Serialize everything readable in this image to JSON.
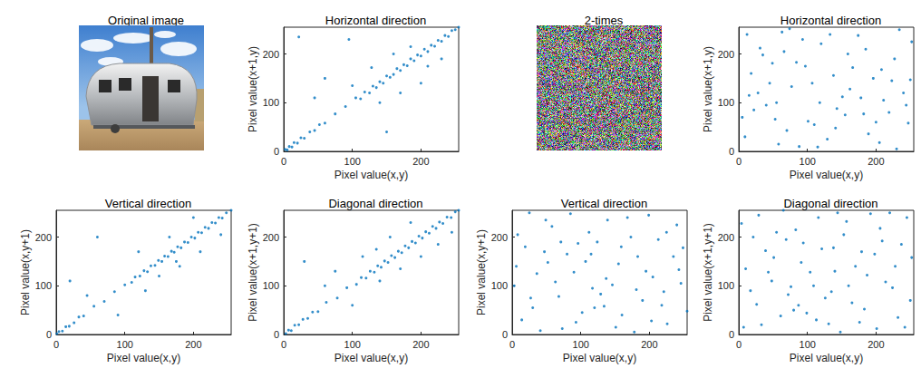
{
  "images": [
    {
      "title": "Original image"
    },
    {
      "title": "2-times"
    }
  ],
  "chart_data": [
    {
      "type": "scatter",
      "title": "Horizontal direction",
      "x_label": "Pixel value(x,y)",
      "y_label": "Pixel value(x+1,y)",
      "xlim": [
        0,
        255
      ],
      "ylim": [
        0,
        255
      ],
      "xticks": [
        0,
        100,
        200
      ],
      "yticks": [
        0,
        100,
        200
      ],
      "grid": false,
      "color": "#0072bd",
      "marker": "circle",
      "x": [
        2,
        5,
        8,
        12,
        15,
        20,
        25,
        30,
        38,
        45,
        52,
        60,
        75,
        90,
        105,
        112,
        118,
        125,
        130,
        135,
        140,
        145,
        150,
        155,
        160,
        165,
        170,
        175,
        180,
        185,
        190,
        195,
        200,
        205,
        210,
        215,
        220,
        225,
        230,
        235,
        240,
        245,
        250,
        255,
        128,
        170,
        60,
        150,
        200,
        95,
        22,
        185,
        140,
        210,
        100,
        230,
        45,
        160
      ],
      "values": [
        4,
        3,
        10,
        9,
        18,
        17,
        28,
        27,
        40,
        43,
        55,
        58,
        77,
        92,
        110,
        108,
        122,
        120,
        134,
        131,
        143,
        140,
        155,
        152,
        158,
        170,
        166,
        178,
        176,
        190,
        186,
        198,
        196,
        210,
        205,
        218,
        216,
        228,
        226,
        238,
        236,
        248,
        250,
        255,
        172,
        120,
        150,
        40,
        140,
        230,
        235,
        215,
        100,
        175,
        135,
        190,
        110,
        200
      ]
    },
    {
      "type": "scatter",
      "title": "Vertical direction",
      "x_label": "Pixel value(x,y)",
      "y_label": "Pixel value(x,y+1)",
      "xlim": [
        0,
        255
      ],
      "ylim": [
        0,
        255
      ],
      "xticks": [
        0,
        100,
        200
      ],
      "yticks": [
        0,
        100,
        200
      ],
      "grid": false,
      "color": "#0072bd",
      "marker": "circle",
      "x": [
        1,
        4,
        9,
        14,
        19,
        26,
        33,
        40,
        55,
        70,
        85,
        100,
        110,
        115,
        122,
        128,
        133,
        138,
        144,
        149,
        154,
        158,
        163,
        168,
        172,
        177,
        182,
        187,
        192,
        197,
        202,
        207,
        212,
        217,
        222,
        227,
        232,
        237,
        242,
        248,
        255,
        60,
        20,
        150,
        180,
        120,
        90,
        210,
        165,
        130,
        240,
        200,
        45,
        175
      ],
      "values": [
        2,
        6,
        7,
        16,
        17,
        24,
        36,
        38,
        58,
        68,
        88,
        102,
        107,
        118,
        120,
        131,
        129,
        141,
        142,
        152,
        150,
        161,
        160,
        171,
        169,
        180,
        178,
        190,
        189,
        200,
        198,
        210,
        209,
        220,
        218,
        230,
        229,
        240,
        239,
        250,
        255,
        200,
        110,
        120,
        140,
        170,
        40,
        170,
        200,
        90,
        205,
        240,
        80,
        150
      ]
    },
    {
      "type": "scatter",
      "title": "Diagonal direction",
      "x_label": "Pixel value(x,y)",
      "y_label": "Pixel value(x+1,y+1)",
      "xlim": [
        0,
        255
      ],
      "ylim": [
        0,
        255
      ],
      "xticks": [
        0,
        100,
        200
      ],
      "yticks": [
        0,
        100,
        200
      ],
      "grid": false,
      "color": "#0072bd",
      "marker": "circle",
      "x": [
        3,
        7,
        11,
        16,
        22,
        28,
        35,
        42,
        50,
        62,
        78,
        92,
        106,
        113,
        120,
        126,
        132,
        137,
        142,
        147,
        152,
        157,
        162,
        167,
        172,
        177,
        182,
        187,
        192,
        197,
        202,
        207,
        212,
        217,
        222,
        227,
        232,
        238,
        244,
        250,
        255,
        30,
        75,
        140,
        170,
        115,
        200,
        185,
        225,
        100,
        155,
        60,
        245,
        135
      ],
      "values": [
        2,
        9,
        8,
        19,
        20,
        31,
        33,
        46,
        47,
        66,
        75,
        96,
        103,
        117,
        116,
        130,
        128,
        141,
        138,
        151,
        148,
        162,
        158,
        171,
        168,
        182,
        178,
        191,
        188,
        202,
        198,
        211,
        208,
        222,
        218,
        231,
        228,
        241,
        240,
        252,
        255,
        150,
        130,
        110,
        135,
        160,
        160,
        230,
        185,
        60,
        200,
        100,
        210,
        175
      ]
    },
    {
      "type": "scatter",
      "title": "Horizontal direction",
      "x_label": "Pixel value(x,y)",
      "y_label": "Pixel value(x+1,y)",
      "xlim": [
        0,
        255
      ],
      "ylim": [
        0,
        255
      ],
      "xticks": [
        0,
        100,
        200
      ],
      "yticks": [
        0,
        100,
        200
      ],
      "grid": false,
      "color": "#0072bd",
      "marker": "circle",
      "x": [
        12,
        35,
        58,
        77,
        101,
        120,
        143,
        166,
        189,
        211,
        234,
        250,
        5,
        28,
        49,
        70,
        93,
        115,
        138,
        159,
        182,
        205,
        227,
        247,
        18,
        40,
        63,
        84,
        107,
        129,
        151,
        174,
        196,
        219,
        240,
        9,
        31,
        53,
        74,
        97,
        118,
        141,
        162,
        185,
        208,
        230,
        252,
        22,
        45,
        66,
        88,
        110,
        133,
        155,
        178,
        200,
        223,
        244,
        15,
        55
      ],
      "values": [
        240,
        198,
        15,
        133,
        62,
        221,
        88,
        172,
        36,
        105,
        250,
        147,
        70,
        120,
        181,
        43,
        230,
        9,
        156,
        200,
        77,
        18,
        190,
        58,
        160,
        95,
        245,
        183,
        140,
        25,
        112,
        238,
        150,
        80,
        120,
        30,
        212,
        66,
        252,
        175,
        100,
        48,
        128,
        210,
        168,
        5,
        225,
        85,
        140,
        205,
        10,
        55,
        240,
        75,
        110,
        60,
        145,
        95,
        115,
        100
      ]
    },
    {
      "type": "scatter",
      "title": "Vertical direction",
      "x_label": "Pixel value(x,y)",
      "y_label": "Pixel value(x,y+1)",
      "xlim": [
        0,
        255
      ],
      "ylim": [
        0,
        255
      ],
      "xticks": [
        0,
        100,
        200
      ],
      "yticks": [
        0,
        100,
        200
      ],
      "grid": false,
      "color": "#0072bd",
      "marker": "circle",
      "x": [
        8,
        30,
        52,
        73,
        96,
        117,
        139,
        160,
        183,
        205,
        226,
        249,
        3,
        25,
        47,
        68,
        90,
        112,
        134,
        155,
        178,
        199,
        221,
        243,
        14,
        36,
        58,
        80,
        102,
        124,
        146,
        168,
        190,
        213,
        235,
        255,
        19,
        41,
        63,
        85,
        107,
        129,
        151,
        173,
        195,
        218,
        240,
        6,
        27,
        49,
        71,
        93,
        115,
        137,
        159,
        181,
        203,
        225,
        246,
        120
      ],
      "values": [
        205,
        55,
        148,
        12,
        187,
        95,
        235,
        40,
        160,
        118,
        22,
        178,
        100,
        250,
        170,
        78,
        128,
        210,
        58,
        145,
        5,
        245,
        88,
        133,
        30,
        125,
        222,
        165,
        45,
        190,
        102,
        240,
        70,
        195,
        160,
        48,
        180,
        8,
        108,
        248,
        150,
        83,
        15,
        200,
        130,
        60,
        225,
        140,
        75,
        235,
        190,
        25,
        165,
        115,
        180,
        92,
        28,
        210,
        105,
        55
      ]
    },
    {
      "type": "scatter",
      "title": "Diagonal direction",
      "x_label": "Pixel value(x,y)",
      "y_label": "Pixel value(x+1,y+1)",
      "xlim": [
        0,
        255
      ],
      "ylim": [
        0,
        255
      ],
      "xticks": [
        0,
        100,
        200
      ],
      "yticks": [
        0,
        100,
        200
      ],
      "grid": false,
      "color": "#0072bd",
      "marker": "circle",
      "x": [
        10,
        33,
        55,
        76,
        99,
        121,
        144,
        165,
        187,
        209,
        232,
        252,
        4,
        26,
        48,
        69,
        91,
        113,
        135,
        157,
        179,
        201,
        224,
        245,
        17,
        39,
        61,
        83,
        104,
        126,
        148,
        170,
        192,
        214,
        237,
        7,
        29,
        51,
        72,
        94,
        116,
        138,
        160,
        183,
        206,
        228,
        250,
        21,
        43,
        65,
        87,
        109,
        131,
        153,
        176,
        198,
        220,
        242,
        140,
        80
      ],
      "values": [
        135,
        20,
        210,
        98,
        44,
        176,
        250,
        65,
        122,
        192,
        35,
        158,
        228,
        62,
        110,
        195,
        148,
        30,
        88,
        232,
        170,
        12,
        96,
        240,
        90,
        172,
        38,
        215,
        128,
        75,
        5,
        140,
        248,
        108,
        185,
        15,
        245,
        158,
        82,
        188,
        240,
        178,
        100,
        52,
        218,
        140,
        70,
        200,
        128,
        255,
        60,
        100,
        22,
        205,
        25,
        165,
        250,
        15,
        130,
        50
      ]
    }
  ]
}
